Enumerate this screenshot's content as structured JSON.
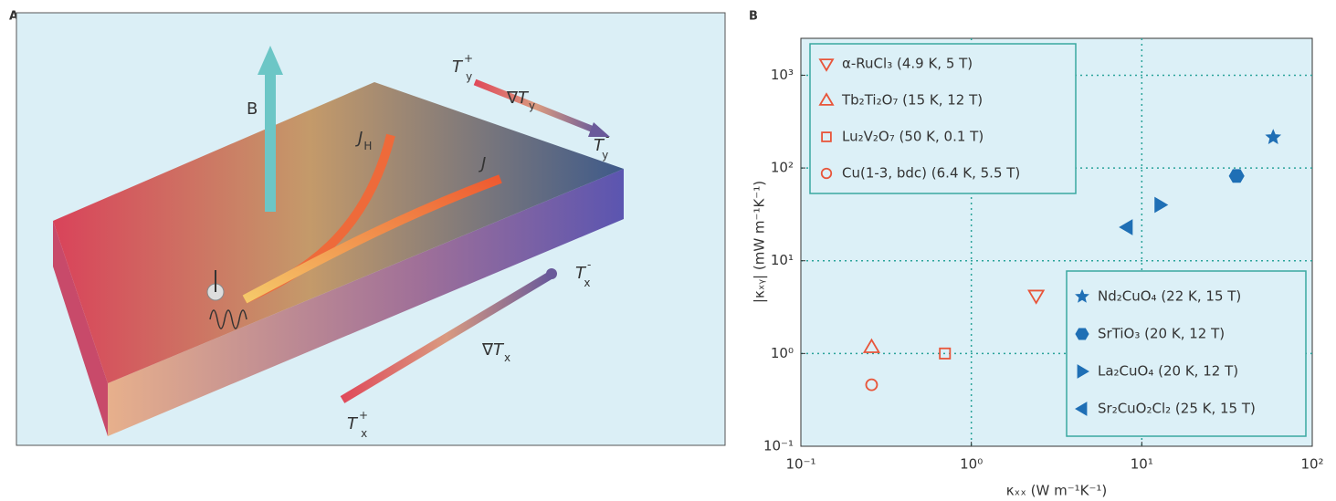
{
  "panel_labels": [
    "A",
    "B"
  ],
  "panel_a": {
    "labels": [
      {
        "main": "B"
      },
      {
        "main": "J",
        "sub": "H"
      },
      {
        "main": "J"
      },
      {
        "main": "T",
        "sub": "y",
        "sup": "+"
      },
      {
        "main": "∇T",
        "sub": "y"
      },
      {
        "main": "T",
        "sub": "y",
        "sup": "-"
      },
      {
        "main": "T",
        "sub": "x",
        "sup": "-"
      },
      {
        "main": "∇T",
        "sub": "x"
      },
      {
        "main": "T",
        "sub": "x",
        "sup": "+"
      }
    ]
  },
  "chart_data": {
    "type": "scatter",
    "x_label": "κₓₓ (W m⁻¹K⁻¹)",
    "y_label": "|κₓᵧ| (mW m⁻¹K⁻¹)",
    "xscale": "log",
    "yscale": "log",
    "grid": true,
    "xlim": [
      0.1,
      100
    ],
    "ylim": [
      0.1,
      2500
    ],
    "xticks": [
      {
        "value": 0.1,
        "label": "10⁻¹"
      },
      {
        "value": 1,
        "label": "10⁰"
      },
      {
        "value": 10,
        "label": "10¹"
      },
      {
        "value": 100,
        "label": "10²"
      }
    ],
    "yticks": [
      {
        "value": 0.1,
        "label": "10⁻¹"
      },
      {
        "value": 1,
        "label": "10⁰"
      },
      {
        "value": 10,
        "label": "10¹"
      },
      {
        "value": 100,
        "label": "10²"
      },
      {
        "value": 1000,
        "label": "10³"
      }
    ],
    "series": [
      {
        "name": "α-RuCl₃ (4.9 K, 5 T)",
        "color": "#e8553a",
        "marker": "triangle-down",
        "filled": false,
        "x": [
          2.4
        ],
        "values": [
          4.2
        ]
      },
      {
        "name": "Tb₂Ti₂O₇ (15 K, 12 T)",
        "color": "#e8553a",
        "marker": "triangle-up",
        "filled": false,
        "x": [
          0.26
        ],
        "values": [
          1.17
        ]
      },
      {
        "name": "Lu₂V₂O₇ (50 K, 0.1 T)",
        "color": "#e8553a",
        "marker": "square",
        "filled": false,
        "x": [
          0.7
        ],
        "values": [
          1.0
        ]
      },
      {
        "name": "Cu(1-3, bdc) (6.4 K, 5.5 T)",
        "color": "#e8553a",
        "marker": "circle",
        "filled": false,
        "x": [
          0.26
        ],
        "values": [
          0.46
        ]
      },
      {
        "name": "Nd₂CuO₄ (22 K, 15 T)",
        "color": "#1f6fb5",
        "marker": "star",
        "filled": true,
        "x": [
          59
        ],
        "values": [
          214
        ]
      },
      {
        "name": "SrTiO₃ (20 K, 12 T)",
        "color": "#1f6fb5",
        "marker": "hexagon",
        "filled": true,
        "x": [
          36
        ],
        "values": [
          82
        ]
      },
      {
        "name": "La₂CuO₄ (20 K, 12 T)",
        "color": "#1f6fb5",
        "marker": "triangle-right",
        "filled": true,
        "x": [
          12.8
        ],
        "values": [
          40
        ]
      },
      {
        "name": "Sr₂CuO₂Cl₂ (25 K, 15 T)",
        "color": "#1f6fb5",
        "marker": "triangle-left",
        "filled": true,
        "x": [
          8.2
        ],
        "values": [
          23
        ]
      }
    ]
  }
}
